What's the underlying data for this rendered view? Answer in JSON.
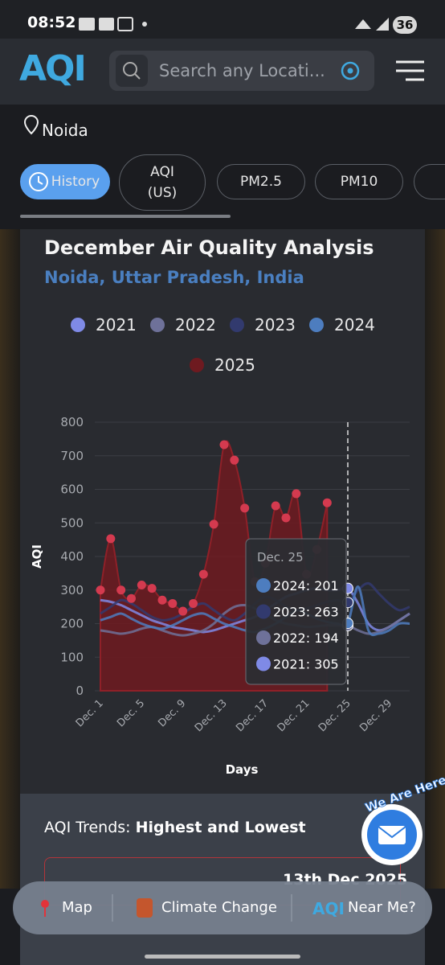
{
  "status": {
    "time": "08:52",
    "battery": "36"
  },
  "header": {
    "logo": "AQI",
    "search_placeholder": "Search any Locati..."
  },
  "location": "Noida",
  "tabs": [
    "History",
    "AQI (US)",
    "PM2.5",
    "PM10"
  ],
  "chart_data": {
    "type": "line",
    "title": "December Air Quality Analysis",
    "subtitle": "Noida, Uttar Pradesh, India",
    "x_label": "Days",
    "y_label": "AQI",
    "categories": [
      "Dec. 1",
      null,
      null,
      null,
      "Dec. 5",
      null,
      null,
      null,
      "Dec. 9",
      null,
      null,
      null,
      "Dec. 13",
      null,
      null,
      null,
      "Dec. 17",
      null,
      null,
      null,
      "Dec. 21",
      null,
      null,
      null,
      "Dec. 25",
      null,
      null,
      null,
      "Dec. 29",
      null,
      null
    ],
    "ylim": [
      0,
      800
    ],
    "yticks": [
      0,
      100,
      200,
      300,
      400,
      500,
      600,
      700,
      800
    ],
    "grid": true,
    "series": [
      {
        "name": "2021",
        "color": "#7f8ae6",
        "values": [
          270,
          265,
          255,
          240,
          225,
          210,
          200,
          190,
          185,
          180,
          175,
          180,
          190,
          200,
          210,
          220,
          240,
          260,
          280,
          290,
          300,
          305,
          300,
          300,
          305,
          260,
          200,
          180,
          190,
          210,
          230
        ]
      },
      {
        "name": "2022",
        "color": "#6e7199",
        "values": [
          180,
          175,
          170,
          175,
          185,
          190,
          180,
          170,
          165,
          170,
          180,
          200,
          230,
          250,
          255,
          245,
          230,
          210,
          200,
          195,
          190,
          192,
          195,
          194,
          194,
          180,
          170,
          175,
          190,
          210,
          230
        ]
      },
      {
        "name": "2023",
        "color": "#323a6e",
        "values": [
          230,
          250,
          270,
          260,
          240,
          220,
          210,
          215,
          230,
          250,
          260,
          240,
          220,
          210,
          230,
          260,
          280,
          270,
          250,
          240,
          245,
          255,
          265,
          270,
          263,
          300,
          320,
          290,
          260,
          240,
          250
        ]
      },
      {
        "name": "2024",
        "color": "#4d7dbf",
        "values": [
          210,
          220,
          230,
          215,
          200,
          190,
          185,
          195,
          210,
          225,
          230,
          215,
          200,
          190,
          180,
          175,
          185,
          200,
          220,
          240,
          230,
          215,
          205,
          200,
          201,
          310,
          180,
          170,
          180,
          200,
          200
        ]
      },
      {
        "name": "2025",
        "color": "#6e1a20",
        "marker_color": "#d43a4f",
        "fill": true,
        "values": [
          300,
          453,
          300,
          275,
          315,
          305,
          270,
          260,
          237,
          260,
          347,
          496,
          733,
          687,
          544,
          325,
          380,
          551,
          515,
          587,
          347,
          421,
          560,
          null,
          null,
          null,
          null,
          null,
          null,
          null,
          null
        ]
      }
    ],
    "tooltip": {
      "title": "Dec. 25",
      "lines": [
        "2024: 201",
        "2023: 263",
        "2022: 194",
        "2021: 305"
      ]
    }
  },
  "trends": {
    "label": "AQI Trends:",
    "emphasis": "Highest and Lowest",
    "date": "13th Dec 2025"
  },
  "badge": "We Are Here!",
  "nav": [
    "Map",
    "Climate Change",
    "Near Me?"
  ]
}
